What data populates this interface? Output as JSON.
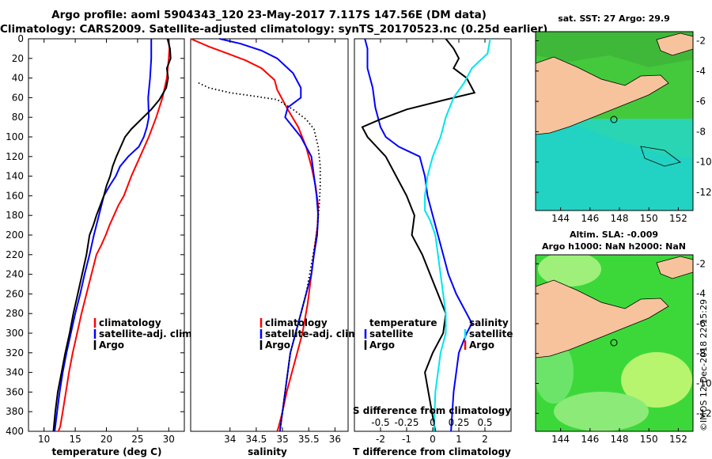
{
  "header": {
    "line1": "Argo profile: aoml 5904343_120 23-May-2017 7.117S 147.56E (DM data)",
    "line2": "Climatology: CARS2009. Satellite-adjusted climatology: synTS_20170523.nc (0.25d earlier)"
  },
  "colors": {
    "climatology": "#ff0000",
    "satellite": "#0000ff",
    "argo": "#000000",
    "cyan": "#00e5ee"
  },
  "chart_data": [
    {
      "type": "line",
      "name": "temperature",
      "xlabel": "temperature (deg C)",
      "ylabel": "",
      "xlim": [
        7.5,
        32.5
      ],
      "ylim": [
        400,
        0
      ],
      "xticks": [
        "10",
        "15",
        "20",
        "25",
        "30"
      ],
      "yticks": [
        "0",
        "20",
        "40",
        "60",
        "80",
        "100",
        "120",
        "140",
        "160",
        "180",
        "200",
        "220",
        "240",
        "260",
        "280",
        "300",
        "320",
        "340",
        "360",
        "380",
        "400"
      ],
      "legend": [
        "climatology",
        "satellite-adj. clim.",
        "Argo"
      ],
      "series": [
        {
          "name": "climatology",
          "color": "#ff0000",
          "x": [
            30.0,
            30.1,
            30.0,
            29.7,
            29.0,
            28.0,
            26.8,
            25.4,
            24.0,
            22.8,
            21.9,
            21.2,
            20.5,
            19.9,
            19.2,
            18.4,
            17.6,
            16.8,
            16.0,
            15.3,
            14.6,
            14.0,
            13.5,
            13.0,
            12.6,
            12.3
          ],
          "y": [
            0,
            10,
            20,
            40,
            60,
            80,
            100,
            120,
            140,
            160,
            170,
            180,
            190,
            200,
            210,
            220,
            240,
            260,
            280,
            300,
            320,
            340,
            360,
            380,
            395,
            400
          ]
        },
        {
          "name": "satellite",
          "color": "#0000ff",
          "x": [
            27.2,
            27.2,
            27.0,
            26.7,
            26.8,
            26.5,
            26.0,
            25.2,
            23.5,
            22.2,
            21.5,
            20.5,
            19.6,
            18.8,
            18.0,
            17.3,
            16.5,
            15.8,
            15.0,
            14.3,
            13.6,
            13.0,
            12.5,
            12.1,
            11.8,
            11.7
          ],
          "y": [
            0,
            20,
            40,
            60,
            80,
            90,
            100,
            110,
            120,
            130,
            140,
            150,
            160,
            180,
            200,
            220,
            240,
            260,
            280,
            300,
            320,
            340,
            360,
            380,
            395,
            400
          ]
        },
        {
          "name": "Argo",
          "color": "#000000",
          "x": [
            29.8,
            30.2,
            30.3,
            29.7,
            29.9,
            29.6,
            28.5,
            27.2,
            25.6,
            24.0,
            23.0,
            22.3,
            21.6,
            21.0,
            20.6,
            20.0,
            19.6,
            19.0,
            18.4,
            17.9,
            17.3,
            16.8,
            16.1,
            15.4,
            14.7,
            14.1,
            13.4,
            12.8,
            12.2,
            11.8,
            11.5
          ],
          "y": [
            0,
            10,
            20,
            30,
            40,
            50,
            62,
            72,
            82,
            92,
            100,
            110,
            120,
            130,
            140,
            150,
            160,
            170,
            180,
            190,
            200,
            220,
            240,
            260,
            280,
            300,
            320,
            340,
            360,
            380,
            400
          ]
        }
      ]
    },
    {
      "type": "line",
      "name": "salinity",
      "xlabel": "salinity",
      "xlim": [
        33.25,
        36.25
      ],
      "ylim": [
        400,
        0
      ],
      "xticks": [
        "34",
        "34.5",
        "35",
        "35.5",
        "36"
      ],
      "legend": [
        "climatology",
        "satellite-adj. clim.",
        "Argo"
      ],
      "series": [
        {
          "name": "climatology",
          "color": "#ff0000",
          "x": [
            33.25,
            33.6,
            34.0,
            34.3,
            34.6,
            34.85,
            34.9,
            35.0,
            35.1,
            35.3,
            35.45,
            35.55,
            35.63,
            35.68,
            35.67,
            35.62,
            35.55,
            35.48,
            35.38,
            35.28,
            35.18,
            35.08,
            35.0,
            34.93,
            34.9
          ],
          "y": [
            0,
            8,
            16,
            22,
            30,
            42,
            52,
            62,
            72,
            90,
            110,
            130,
            150,
            170,
            190,
            210,
            240,
            270,
            300,
            320,
            340,
            360,
            380,
            395,
            400
          ]
        },
        {
          "name": "satellite",
          "color": "#0000ff",
          "x": [
            33.8,
            34.2,
            34.6,
            34.9,
            35.2,
            35.35,
            35.35,
            35.1,
            35.05,
            35.2,
            35.35,
            35.45,
            35.55,
            35.6,
            35.65,
            35.68,
            35.66,
            35.6,
            35.55,
            35.45,
            35.35,
            35.25,
            35.15,
            35.05,
            34.95
          ],
          "y": [
            0,
            5,
            12,
            20,
            35,
            50,
            60,
            70,
            80,
            90,
            100,
            110,
            120,
            140,
            160,
            180,
            200,
            220,
            240,
            260,
            280,
            300,
            320,
            360,
            400
          ]
        },
        {
          "name": "Argo",
          "color": "#000000",
          "style": "dotted",
          "x": [
            33.4,
            33.6,
            34.0,
            34.4,
            34.9,
            35.2,
            35.45,
            35.6,
            35.68,
            35.72,
            35.72,
            35.7,
            35.65,
            35.55,
            35.45,
            35.3,
            35.15,
            35.05,
            34.95
          ],
          "y": [
            45,
            50,
            55,
            58,
            62,
            72,
            82,
            92,
            110,
            130,
            150,
            170,
            200,
            230,
            260,
            290,
            320,
            360,
            400
          ]
        }
      ]
    },
    {
      "type": "line",
      "name": "differences",
      "xlabel": "T difference from climatology",
      "top_axis_label": "S difference from climatology",
      "xlim": [
        -3.0,
        3.0
      ],
      "ylim": [
        400,
        0
      ],
      "xticks": [
        "-2",
        "-1",
        "0",
        "1",
        "2"
      ],
      "top_xticks": [
        "-0.5",
        "-0.25",
        "0",
        "0.25",
        "0.5"
      ],
      "legend_left": [
        "temperature",
        "satellite",
        "Argo"
      ],
      "legend_right": [
        "salinity",
        "satellite",
        "Argo"
      ],
      "series": [
        {
          "name": "temperature satellite",
          "color": "#0000ff",
          "x": [
            -2.6,
            -2.5,
            -2.5,
            -2.3,
            -2.2,
            -2.0,
            -1.8,
            -1.3,
            -0.5,
            -0.3,
            -0.2,
            0.0,
            0.2,
            0.4,
            0.6,
            0.9,
            1.1,
            1.3,
            1.5,
            1.3,
            1.0,
            0.8,
            0.7
          ],
          "y": [
            0,
            10,
            30,
            50,
            70,
            90,
            100,
            110,
            120,
            140,
            160,
            180,
            200,
            220,
            240,
            260,
            270,
            280,
            290,
            300,
            320,
            360,
            400
          ]
        },
        {
          "name": "temperature Argo",
          "color": "#000000",
          "x": [
            0.5,
            0.8,
            1.0,
            0.8,
            1.3,
            1.5,
            1.6,
            0.5,
            -1.0,
            -2.0,
            -2.7,
            -2.5,
            -1.8,
            -1.4,
            -1.0,
            -0.7,
            -0.8,
            -0.4,
            -0.1,
            0.2,
            0.5,
            0.4,
            0.0,
            -0.3,
            -0.1,
            0.1
          ],
          "y": [
            0,
            10,
            20,
            30,
            40,
            50,
            55,
            62,
            72,
            82,
            90,
            100,
            120,
            140,
            160,
            180,
            200,
            220,
            240,
            260,
            280,
            300,
            320,
            340,
            370,
            400
          ]
        },
        {
          "name": "salinity satellite",
          "color": "#00e5ee",
          "x": [
            2.2,
            2.1,
            1.5,
            1.2,
            0.8,
            0.5,
            0.3,
            0.0,
            -0.2,
            -0.3,
            -0.3,
            -0.1,
            0.1,
            0.3,
            0.5,
            0.5,
            0.3,
            0.2,
            0.1,
            0.05
          ],
          "y": [
            0,
            15,
            30,
            45,
            60,
            80,
            100,
            120,
            140,
            160,
            175,
            185,
            200,
            240,
            280,
            300,
            320,
            340,
            360,
            400
          ]
        }
      ]
    }
  ],
  "maps": [
    {
      "title": "sat. SST: 27 Argo: 29.9",
      "xticks": [
        "144",
        "146",
        "148",
        "150",
        "152"
      ],
      "yticks": [
        "-2",
        "-4",
        "-6",
        "-8",
        "-10",
        "-12"
      ]
    },
    {
      "title_line1": "Altim. SLA: -0.009",
      "title_line2": "Argo h1000: NaN h2000: NaN",
      "xticks": [
        "144",
        "146",
        "148",
        "150",
        "152"
      ],
      "yticks": [
        "-2",
        "-4",
        "-6",
        "-8",
        "-10",
        "-12"
      ]
    }
  ],
  "stamp": "©IMOS 12-Dec-2018 22:15:29"
}
